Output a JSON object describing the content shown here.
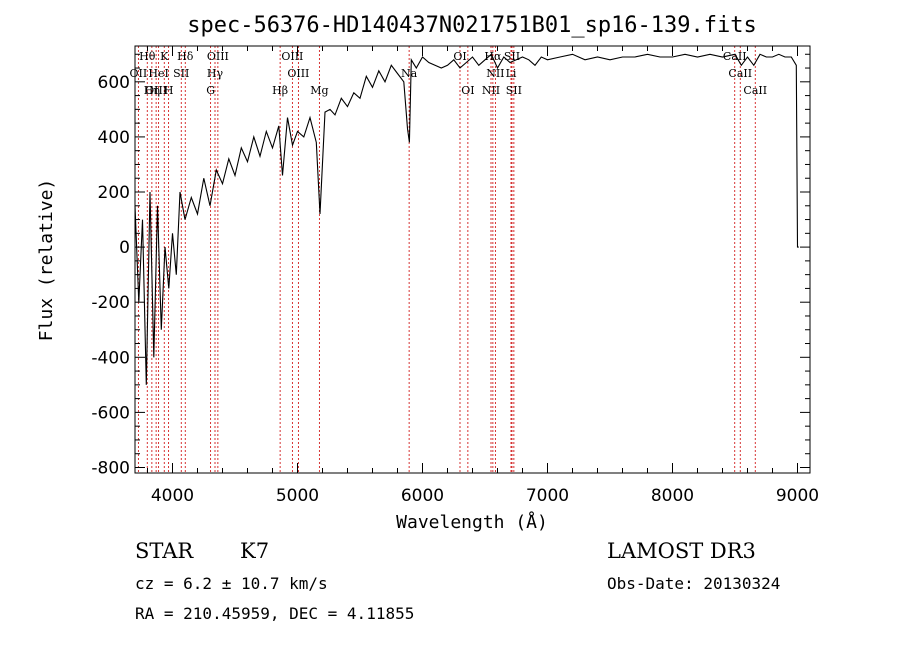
{
  "chart_data": {
    "type": "line",
    "title": "spec-56376-HD140437N021751B01_sp16-139.fits",
    "xlabel": "Wavelength (Å)",
    "ylabel": "Flux (relative)",
    "xlim": [
      3700,
      9100
    ],
    "ylim": [
      -820,
      730
    ],
    "xticks": [
      4000,
      5000,
      6000,
      7000,
      8000,
      9000
    ],
    "yticks": [
      -800,
      -600,
      -400,
      -200,
      0,
      200,
      400,
      600
    ],
    "series": [
      {
        "name": "spectrum",
        "x": [
          3700,
          3730,
          3760,
          3790,
          3820,
          3850,
          3880,
          3910,
          3940,
          3970,
          4000,
          4030,
          4060,
          4100,
          4150,
          4200,
          4250,
          4300,
          4350,
          4400,
          4450,
          4500,
          4550,
          4600,
          4650,
          4700,
          4750,
          4800,
          4850,
          4880,
          4920,
          4960,
          5000,
          5050,
          5100,
          5150,
          5180,
          5220,
          5260,
          5300,
          5350,
          5400,
          5450,
          5500,
          5550,
          5600,
          5650,
          5700,
          5750,
          5800,
          5850,
          5880,
          5895,
          5910,
          5950,
          6000,
          6050,
          6100,
          6150,
          6200,
          6250,
          6300,
          6350,
          6400,
          6450,
          6500,
          6550,
          6600,
          6650,
          6700,
          6750,
          6800,
          6850,
          6900,
          6950,
          7000,
          7100,
          7200,
          7300,
          7400,
          7500,
          7600,
          7700,
          7800,
          7900,
          8000,
          8100,
          8200,
          8300,
          8400,
          8500,
          8550,
          8600,
          8650,
          8700,
          8750,
          8800,
          8850,
          8900,
          8950,
          8990,
          9000,
          9010
        ],
        "values": [
          150,
          -200,
          100,
          -500,
          200,
          -400,
          150,
          -300,
          0,
          -150,
          50,
          -100,
          200,
          100,
          180,
          120,
          250,
          150,
          280,
          230,
          320,
          260,
          360,
          310,
          400,
          330,
          420,
          360,
          440,
          260,
          470,
          370,
          420,
          400,
          470,
          380,
          120,
          490,
          500,
          480,
          540,
          510,
          560,
          540,
          620,
          580,
          640,
          600,
          660,
          630,
          600,
          430,
          380,
          680,
          650,
          690,
          670,
          660,
          650,
          660,
          680,
          650,
          670,
          690,
          660,
          680,
          700,
          650,
          690,
          670,
          680,
          690,
          680,
          660,
          690,
          680,
          690,
          700,
          680,
          690,
          680,
          690,
          690,
          700,
          690,
          690,
          700,
          690,
          700,
          690,
          700,
          660,
          690,
          660,
          700,
          690,
          690,
          700,
          690,
          690,
          660,
          0,
          0
        ]
      }
    ],
    "line_markers": [
      {
        "name": "Hθ",
        "wavelength": 3798,
        "row": 0
      },
      {
        "name": "K",
        "wavelength": 3934,
        "row": 0
      },
      {
        "name": "Hδ",
        "wavelength": 4102,
        "row": 0
      },
      {
        "name": "OII",
        "wavelength": 3727,
        "row": 1
      },
      {
        "name": "HeI",
        "wavelength": 3889,
        "row": 1
      },
      {
        "name": "SII",
        "wavelength": 4070,
        "row": 1
      },
      {
        "name": "OIII",
        "wavelength": 3869,
        "row": 2
      },
      {
        "name": "Hη",
        "wavelength": 3835,
        "row": 2
      },
      {
        "name": "H",
        "wavelength": 3969,
        "row": 2
      },
      {
        "name": "OIII",
        "wavelength": 4363,
        "row": 0
      },
      {
        "name": "Hγ",
        "wavelength": 4340,
        "row": 1
      },
      {
        "name": "G",
        "wavelength": 4305,
        "row": 2
      },
      {
        "name": "Hβ",
        "wavelength": 4861,
        "row": 2
      },
      {
        "name": "OIII",
        "wavelength": 4959,
        "row": 0
      },
      {
        "name": "OIII",
        "wavelength": 5007,
        "row": 1
      },
      {
        "name": "Mg",
        "wavelength": 5175,
        "row": 2
      },
      {
        "name": "Na",
        "wavelength": 5893,
        "row": 1
      },
      {
        "name": "OI",
        "wavelength": 6300,
        "row": 0
      },
      {
        "name": "OI",
        "wavelength": 6363,
        "row": 2
      },
      {
        "name": "NII",
        "wavelength": 6548,
        "row": 2
      },
      {
        "name": "Hα",
        "wavelength": 6563,
        "row": 0
      },
      {
        "name": "NII",
        "wavelength": 6583,
        "row": 1
      },
      {
        "name": "SII",
        "wavelength": 6716,
        "row": 0
      },
      {
        "name": "SII",
        "wavelength": 6731,
        "row": 2
      },
      {
        "name": "Li",
        "wavelength": 6708,
        "row": 1
      },
      {
        "name": "CaII",
        "wavelength": 8498,
        "row": 0
      },
      {
        "name": "CaII",
        "wavelength": 8542,
        "row": 1
      },
      {
        "name": "CaII",
        "wavelength": 8662,
        "row": 2
      }
    ]
  },
  "info": {
    "object_class": "STAR",
    "subclass": "K7",
    "redshift": "cz = 6.2 ± 10.7 km/s",
    "coords": "RA = 210.45959, DEC =    4.11855",
    "survey": "LAMOST DR3",
    "obs_date": "Obs-Date: 20130324"
  },
  "colors": {
    "marker": "#cc0000",
    "spectrum": "#000000"
  }
}
